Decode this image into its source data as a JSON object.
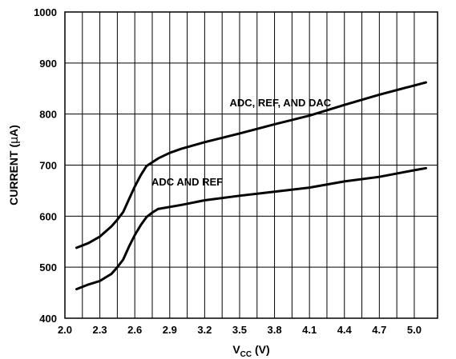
{
  "chart_data": {
    "type": "line",
    "title": "",
    "xlabel_main": "V",
    "xlabel_sub": "CC",
    "xlabel_unit": " (V)",
    "ylabel_prefix": "CURRENT (",
    "ylabel_mu": "μ",
    "ylabel_suffix": "A)",
    "xlim": [
      2.0,
      5.2
    ],
    "ylim": [
      400,
      1000
    ],
    "x_ticks": [
      "2.0",
      "2.3",
      "2.6",
      "2.9",
      "3.2",
      "3.5",
      "3.8",
      "4.1",
      "4.4",
      "4.7",
      "5.0"
    ],
    "x_tick_values": [
      2.0,
      2.3,
      2.6,
      2.9,
      3.2,
      3.5,
      3.8,
      4.1,
      4.4,
      4.7,
      5.0
    ],
    "y_ticks": [
      "400",
      "500",
      "600",
      "700",
      "800",
      "900",
      "1000"
    ],
    "y_tick_values": [
      400,
      500,
      600,
      700,
      800,
      900,
      1000
    ],
    "x_grid_values": [
      2.15,
      2.3,
      2.45,
      2.6,
      2.75,
      2.9,
      3.05,
      3.2,
      3.35,
      3.5,
      3.65,
      3.8,
      3.95,
      4.1,
      4.25,
      4.4,
      4.55,
      4.7,
      4.85,
      5.0
    ],
    "y_grid_values": [
      500,
      600,
      700,
      800,
      900
    ],
    "grid": true,
    "series": [
      {
        "name": "ADC, REF, AND DAC",
        "x": [
          2.1,
          2.2,
          2.3,
          2.4,
          2.45,
          2.5,
          2.55,
          2.6,
          2.65,
          2.7,
          2.8,
          2.9,
          3.0,
          3.2,
          3.5,
          3.8,
          4.1,
          4.4,
          4.7,
          5.0,
          5.1
        ],
        "values": [
          538,
          547,
          560,
          580,
          593,
          608,
          633,
          658,
          680,
          698,
          713,
          724,
          732,
          745,
          762,
          780,
          797,
          818,
          838,
          856,
          862
        ]
      },
      {
        "name": "ADC AND REF",
        "x": [
          2.1,
          2.2,
          2.3,
          2.4,
          2.45,
          2.5,
          2.55,
          2.6,
          2.65,
          2.7,
          2.75,
          2.8,
          2.9,
          3.0,
          3.2,
          3.5,
          3.8,
          4.1,
          4.4,
          4.7,
          5.0,
          5.1
        ],
        "values": [
          457,
          466,
          473,
          487,
          500,
          515,
          540,
          563,
          582,
          598,
          607,
          614,
          618,
          622,
          631,
          640,
          648,
          656,
          668,
          677,
          690,
          694
        ]
      }
    ],
    "annotations": [
      {
        "text": "ADC, REF, AND DAC",
        "x": 3.85,
        "y": 815
      },
      {
        "text": "ADC AND REF",
        "x": 3.05,
        "y": 660
      }
    ]
  }
}
